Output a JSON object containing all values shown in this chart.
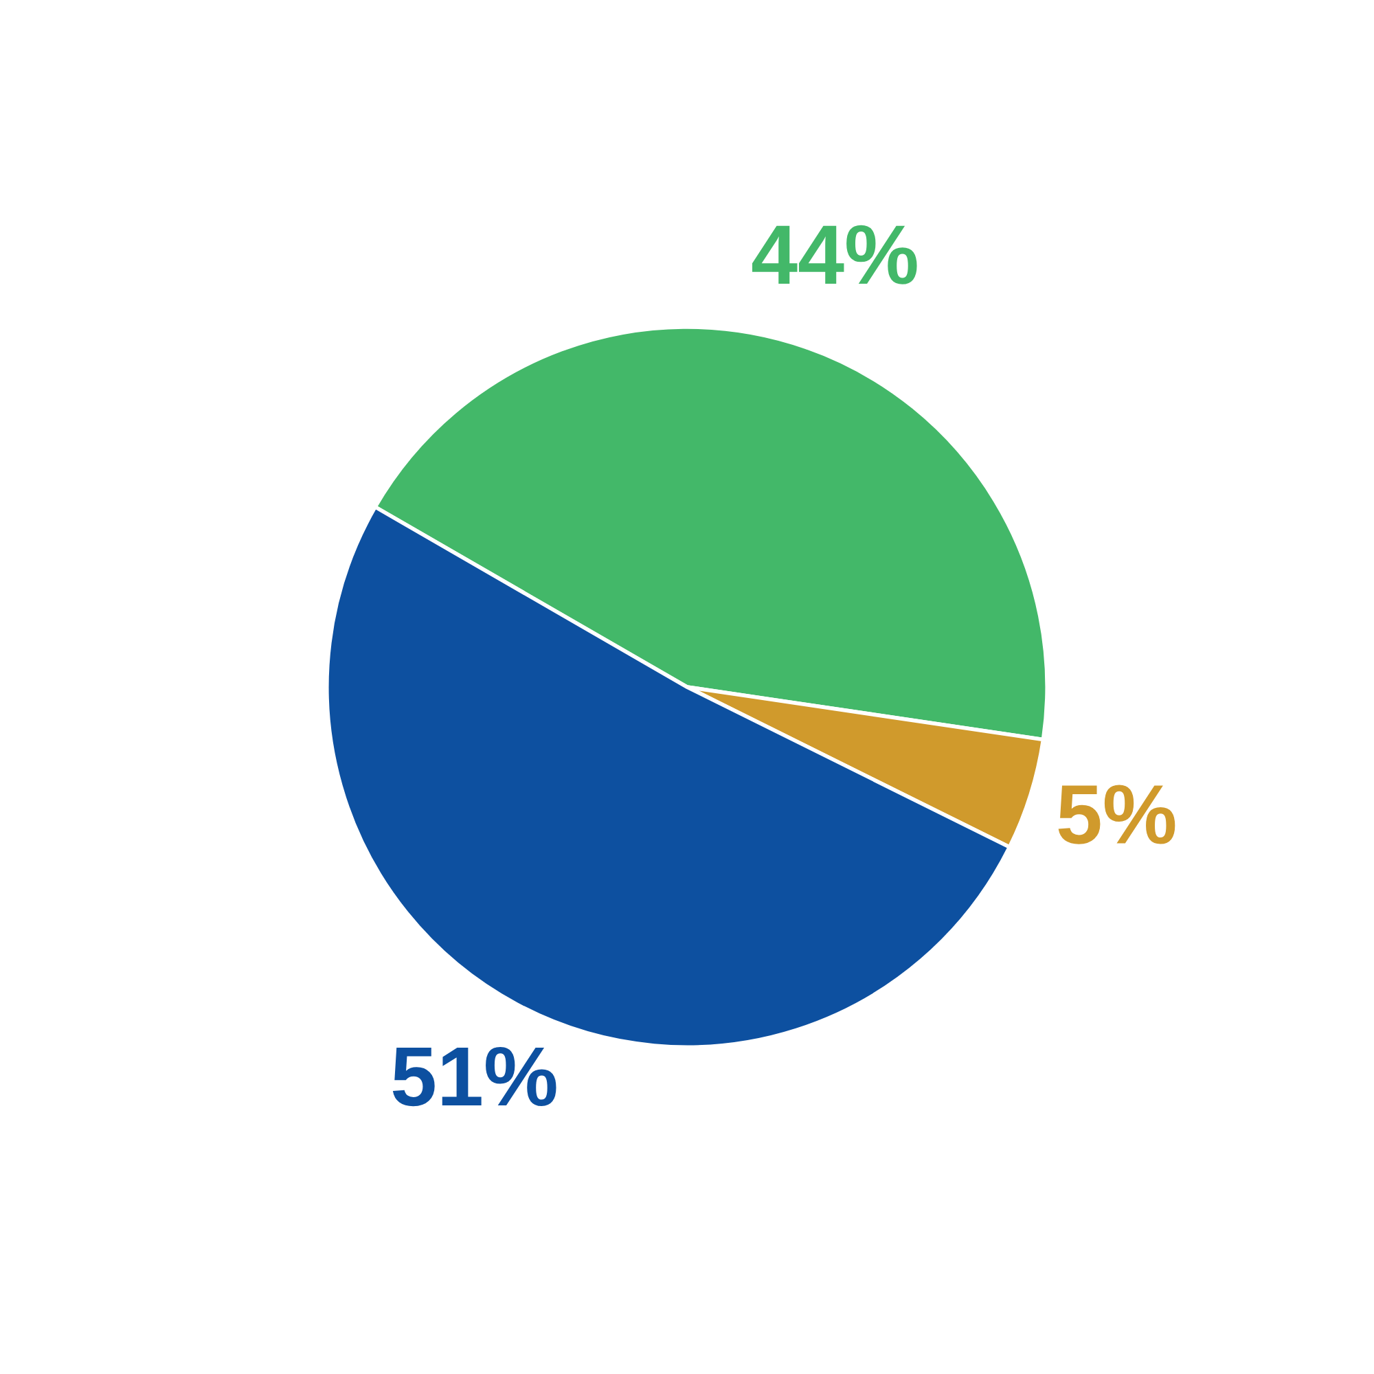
{
  "chart_data": {
    "type": "pie",
    "categories": [
      null,
      null,
      null
    ],
    "values": [
      44,
      5,
      51
    ],
    "colors": [
      "#43b869",
      "#d09a2c",
      "#0d50a0"
    ],
    "value_labels": [
      "44%",
      "5%",
      "51%"
    ]
  }
}
